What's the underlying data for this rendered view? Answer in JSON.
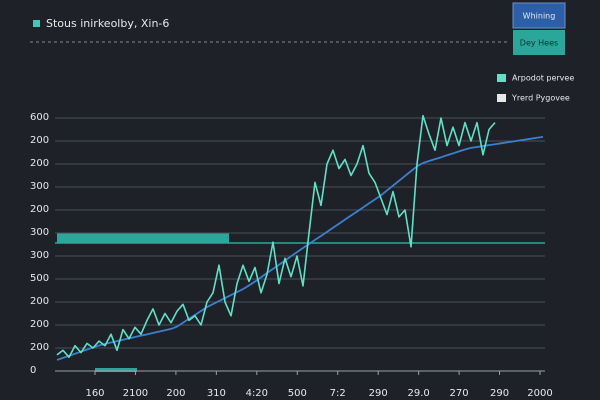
{
  "chart_data": {
    "type": "line",
    "title": "Stous inirkeolby, Xin-6",
    "buttons": [
      "Whining",
      "Dey Hees"
    ],
    "ylim": [
      0,
      11
    ],
    "ylabels": [
      "0",
      "200",
      "200",
      "200",
      "500",
      "300",
      "300",
      "200",
      "300",
      "200",
      "200",
      "600"
    ],
    "x_labels": [
      "160",
      "2100",
      "200",
      "310",
      "4:20",
      "500",
      "7:2",
      "290",
      "29.0",
      "270",
      "290",
      "2000"
    ],
    "grid": true,
    "legend": "top-right",
    "series": [
      {
        "name": "Arpodot pervee",
        "color": "#5fe0c8",
        "values": [
          0.7,
          0.9,
          0.6,
          1.1,
          0.8,
          1.2,
          1.0,
          1.3,
          1.1,
          1.6,
          0.9,
          1.8,
          1.4,
          1.9,
          1.6,
          2.2,
          2.7,
          2.0,
          2.5,
          2.1,
          2.6,
          2.9,
          2.2,
          2.4,
          2.0,
          3.0,
          3.4,
          4.6,
          3.0,
          2.4,
          3.8,
          4.6,
          3.9,
          4.5,
          3.4,
          4.2,
          5.6,
          3.8,
          4.9,
          4.1,
          5.0,
          3.7,
          6.0,
          8.2,
          7.2,
          9.0,
          9.6,
          8.8,
          9.2,
          8.5,
          9.0,
          9.8,
          8.6,
          8.2,
          7.5,
          6.8,
          7.8,
          6.7,
          7.0,
          5.4,
          9.0,
          11.1,
          10.3,
          9.6,
          11.0,
          9.8,
          10.6,
          9.8,
          10.8,
          10.0,
          10.8,
          9.4,
          10.5,
          10.8,
          null,
          null,
          null,
          null,
          null,
          null,
          null,
          null
        ]
      },
      {
        "name": "Yrerd Pygovee",
        "color": "#3b7fd0",
        "values": [
          0.48,
          0.57,
          0.66,
          0.75,
          0.84,
          0.93,
          1.02,
          1.11,
          1.18,
          1.24,
          1.3,
          1.36,
          1.42,
          1.48,
          1.54,
          1.59,
          1.65,
          1.71,
          1.77,
          1.83,
          1.93,
          2.1,
          2.27,
          2.44,
          2.61,
          2.78,
          2.91,
          3.04,
          3.17,
          3.3,
          3.43,
          3.56,
          3.72,
          3.89,
          4.07,
          4.26,
          4.44,
          4.62,
          4.8,
          4.99,
          5.17,
          5.35,
          5.52,
          5.7,
          5.87,
          6.05,
          6.23,
          6.4,
          6.58,
          6.76,
          6.93,
          7.11,
          7.29,
          7.46,
          7.64,
          7.85,
          8.06,
          8.27,
          8.48,
          8.69,
          8.9,
          9.04,
          9.13,
          9.21,
          9.29,
          9.38,
          9.46,
          9.55,
          9.63,
          9.7,
          9.74,
          9.78,
          9.82,
          9.86,
          9.9,
          9.94,
          9.98,
          10.02,
          10.06,
          10.1,
          10.14,
          10.18
        ]
      }
    ]
  }
}
